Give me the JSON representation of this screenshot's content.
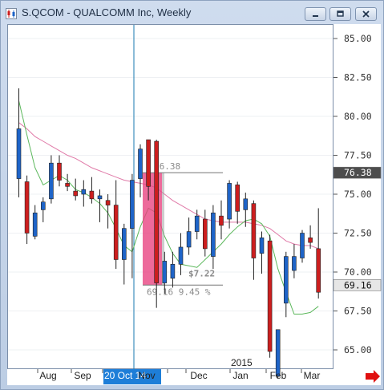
{
  "window": {
    "title": "S.QCOM - QUALCOMM Inc, Weekly",
    "buttons": [
      "minimize",
      "restore",
      "close"
    ]
  },
  "chart_data": {
    "type": "candlestick",
    "symbol": "S.QCOM",
    "title": "QUALCOMM Inc, Weekly",
    "y_axis": {
      "ticks": [
        "85.00",
        "82.50",
        "80.00",
        "77.50",
        "75.00",
        "72.50",
        "70.00",
        "67.50",
        "65.00"
      ],
      "range": [
        63.2,
        86.5
      ],
      "position": "right"
    },
    "x_axis": {
      "labels": [
        "Aug",
        "Sep",
        "20 Oct 14",
        "Nov",
        "Dec",
        "Jan",
        "Feb",
        "Mar"
      ],
      "highlighted_label": "20 Oct 14",
      "year_marker": "2015"
    },
    "candles": [
      {
        "o": 76.0,
        "h": 81.8,
        "l": 74.8,
        "c": 79.2
      },
      {
        "o": 75.8,
        "h": 76.2,
        "l": 71.8,
        "c": 72.5
      },
      {
        "o": 72.3,
        "h": 74.3,
        "l": 72.1,
        "c": 73.8
      },
      {
        "o": 74.0,
        "h": 74.8,
        "l": 73.2,
        "c": 74.5
      },
      {
        "o": 74.7,
        "h": 77.5,
        "l": 74.4,
        "c": 77.0
      },
      {
        "o": 77.0,
        "h": 77.5,
        "l": 75.5,
        "c": 75.9
      },
      {
        "o": 75.7,
        "h": 76.3,
        "l": 75.2,
        "c": 75.5
      },
      {
        "o": 75.2,
        "h": 76.0,
        "l": 74.6,
        "c": 74.9
      },
      {
        "o": 75.0,
        "h": 75.9,
        "l": 74.2,
        "c": 75.3
      },
      {
        "o": 75.2,
        "h": 76.1,
        "l": 74.4,
        "c": 74.7
      },
      {
        "o": 74.7,
        "h": 75.3,
        "l": 73.2,
        "c": 74.9
      },
      {
        "o": 74.6,
        "h": 75.0,
        "l": 72.8,
        "c": 74.3
      },
      {
        "o": 74.3,
        "h": 75.9,
        "l": 70.2,
        "c": 70.8
      },
      {
        "o": 70.8,
        "h": 73.1,
        "l": 69.2,
        "c": 72.8
      },
      {
        "o": 72.8,
        "h": 76.3,
        "l": 69.6,
        "c": 75.9
      },
      {
        "o": 76.0,
        "h": 78.2,
        "l": 74.8,
        "c": 77.9
      },
      {
        "o": 78.5,
        "h": 78.5,
        "l": 74.6,
        "c": 75.5
      },
      {
        "o": 78.4,
        "h": 78.5,
        "l": 67.7,
        "c": 69.3
      },
      {
        "o": 69.3,
        "h": 71.3,
        "l": 68.6,
        "c": 70.7
      },
      {
        "o": 69.6,
        "h": 71.3,
        "l": 69.0,
        "c": 70.5
      },
      {
        "o": 70.5,
        "h": 72.5,
        "l": 69.8,
        "c": 71.6
      },
      {
        "o": 71.6,
        "h": 73.5,
        "l": 71.1,
        "c": 72.6
      },
      {
        "o": 72.6,
        "h": 74.0,
        "l": 72.1,
        "c": 73.6
      },
      {
        "o": 73.4,
        "h": 74.0,
        "l": 71.0,
        "c": 71.5
      },
      {
        "o": 71.0,
        "h": 74.3,
        "l": 70.2,
        "c": 73.8
      },
      {
        "o": 73.6,
        "h": 74.6,
        "l": 72.1,
        "c": 73.0
      },
      {
        "o": 73.4,
        "h": 75.9,
        "l": 72.8,
        "c": 75.7
      },
      {
        "o": 75.6,
        "h": 75.8,
        "l": 73.1,
        "c": 73.9
      },
      {
        "o": 74.0,
        "h": 75.1,
        "l": 72.9,
        "c": 74.7
      },
      {
        "o": 74.4,
        "h": 74.6,
        "l": 69.5,
        "c": 70.9
      },
      {
        "o": 71.2,
        "h": 72.6,
        "l": 69.9,
        "c": 72.2
      },
      {
        "o": 72.0,
        "h": 72.4,
        "l": 64.5,
        "c": 64.9
      },
      {
        "o": 63.3,
        "h": 66.3,
        "l": 63.2,
        "c": 66.3
      },
      {
        "o": 68.0,
        "h": 71.3,
        "l": 67.1,
        "c": 71.0
      },
      {
        "o": 70.1,
        "h": 71.8,
        "l": 69.6,
        "c": 71.0
      },
      {
        "o": 70.9,
        "h": 72.7,
        "l": 70.6,
        "c": 72.5
      },
      {
        "o": 72.2,
        "h": 73.0,
        "l": 71.5,
        "c": 71.9
      },
      {
        "o": 71.5,
        "h": 74.1,
        "l": 68.3,
        "c": 68.7
      }
    ],
    "ma_fast": [
      81.0,
      78.8,
      76.7,
      75.6,
      75.9,
      76.2,
      75.9,
      75.3,
      75.1,
      74.8,
      74.4,
      73.8,
      72.8,
      71.7,
      71.3,
      72.9,
      74.1,
      73.8,
      72.3,
      71.2,
      70.5,
      70.4,
      70.3,
      70.8,
      71.3,
      71.8,
      72.4,
      72.9,
      73.3,
      73.4,
      73.1,
      72.3,
      70.2,
      68.7,
      67.3,
      67.3,
      67.4,
      67.8
    ],
    "ma_slow": [
      79.6,
      79.2,
      78.7,
      78.4,
      78.1,
      77.8,
      77.5,
      77.3,
      77.0,
      76.7,
      76.5,
      76.3,
      76.1,
      75.9,
      75.8,
      75.7,
      75.6,
      75.4,
      75.0,
      74.6,
      74.3,
      74.0,
      73.7,
      73.4,
      73.3,
      73.2,
      73.2,
      73.2,
      73.2,
      73.1,
      73.0,
      72.8,
      72.4,
      72.0,
      71.8,
      71.7,
      71.7,
      71.5
    ],
    "colors": {
      "up": "#1e64c8",
      "down": "#cc1e1e",
      "ma_fast": "#5cb85c",
      "ma_slow": "#e07aa8",
      "crosshair": "#1a7ab0",
      "measure": "#e8407f",
      "price_marker": "#444444"
    },
    "measurement": {
      "start_price_label": "76.38",
      "change_label": "$7.22",
      "detail_label": "69.16 9.45 %"
    },
    "price_markers": [
      {
        "value": "76.38",
        "style": "dark"
      },
      {
        "value": "69.16",
        "style": "light"
      }
    ]
  }
}
